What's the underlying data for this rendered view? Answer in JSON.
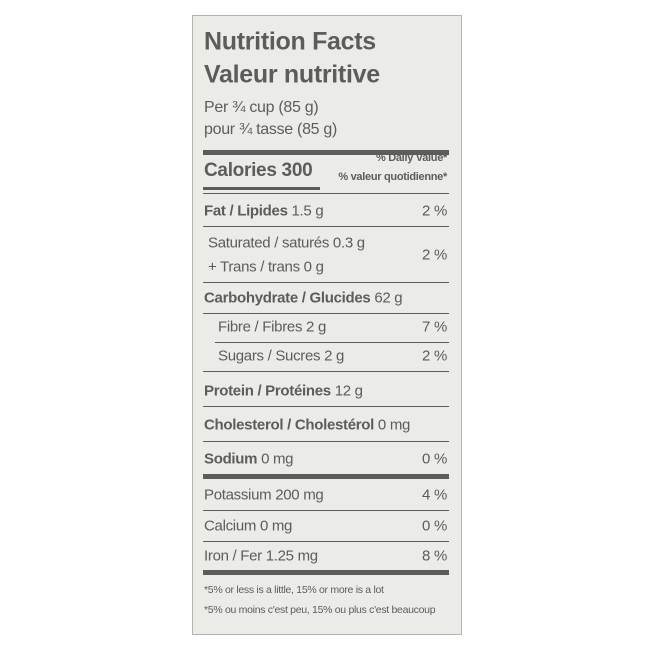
{
  "label": {
    "title": "Nutrition Facts",
    "title_fr": "Valeur nutritive",
    "serving": "Per ¾ cup (85 g)",
    "serving_fr": "pour ¾ tasse (85 g)",
    "calories": "Calories 300",
    "dv_header": "% Daily Value*",
    "dv_header_fr": "% valeur quotidienne*",
    "rows": [
      {
        "name": "Fat / Lipides",
        "amount": "1.5 g",
        "dv": "2 %"
      },
      {
        "name": "Saturated / saturés",
        "amount": "0.3 g",
        "name2": "+ Trans / trans",
        "amount2": "0 g",
        "dv": "2 %"
      },
      {
        "name": "Carbohydrate / Glucides",
        "amount": "62 g"
      },
      {
        "name": "Fibre / Fibres",
        "amount": "2 g",
        "dv": "7 %"
      },
      {
        "name": "Sugars / Sucres",
        "amount": "2 g",
        "dv": "2 %"
      },
      {
        "name": "Protein / Protéines",
        "amount": "12 g"
      },
      {
        "name": "Cholesterol / Cholestérol",
        "amount": "0 mg"
      },
      {
        "name": "Sodium",
        "amount": "0 mg",
        "dv": "0 %"
      },
      {
        "name": "Potassium",
        "amount": "200 mg",
        "dv": "4 %"
      },
      {
        "name": "Calcium",
        "amount": "0 mg",
        "dv": "0 %"
      },
      {
        "name": "Iron / Fer",
        "amount": "1.25 mg",
        "dv": "8 %"
      }
    ],
    "footnote": "*5% or less is a little, 15% or more is a lot",
    "footnote_fr": "*5% ou moins c'est peu, 15% ou plus c'est beaucoup"
  }
}
